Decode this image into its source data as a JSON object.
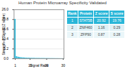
{
  "chart_data": {
    "type": "bar",
    "title": "Human Protein Microarray Specificity Validated",
    "xlabel": "Signal Rank",
    "ylabel": "Strength of Signal (Z score)",
    "x": [
      1,
      2,
      3,
      4,
      5,
      6,
      7,
      8,
      9,
      10,
      11,
      12,
      13,
      14,
      15,
      16,
      17,
      18,
      19,
      20,
      21,
      22,
      23,
      24,
      25,
      26,
      27,
      28,
      29,
      30
    ],
    "values": [
      20.92,
      1.16,
      0.87,
      0.7,
      0.6,
      0.52,
      0.46,
      0.42,
      0.38,
      0.35,
      0.33,
      0.31,
      0.29,
      0.27,
      0.26,
      0.25,
      0.24,
      0.23,
      0.22,
      0.21,
      0.2,
      0.19,
      0.18,
      0.17,
      0.16,
      0.15,
      0.14,
      0.13,
      0.12,
      0.11
    ],
    "color": "#29b6d8",
    "xlim": [
      0.3,
      30.5
    ],
    "xticks": [
      1,
      10,
      20,
      30
    ],
    "ylim": [
      0,
      26.0
    ],
    "yticks": [
      {
        "value": 0,
        "label": "0.0"
      },
      5.2,
      10.4,
      15.6,
      20.8,
      {
        "value": 26,
        "label": "26.0"
      }
    ],
    "grid": true,
    "table": {
      "headers": [
        "Rank",
        "Protein",
        "Z score",
        "S score"
      ],
      "rows": [
        [
          "1",
          "STAT5B",
          "20.92",
          "19.76"
        ],
        [
          "2",
          "ZNF460",
          "1.16",
          "0.29"
        ],
        [
          "3",
          "ZFP90",
          "0.87",
          "0.28"
        ]
      ]
    }
  }
}
